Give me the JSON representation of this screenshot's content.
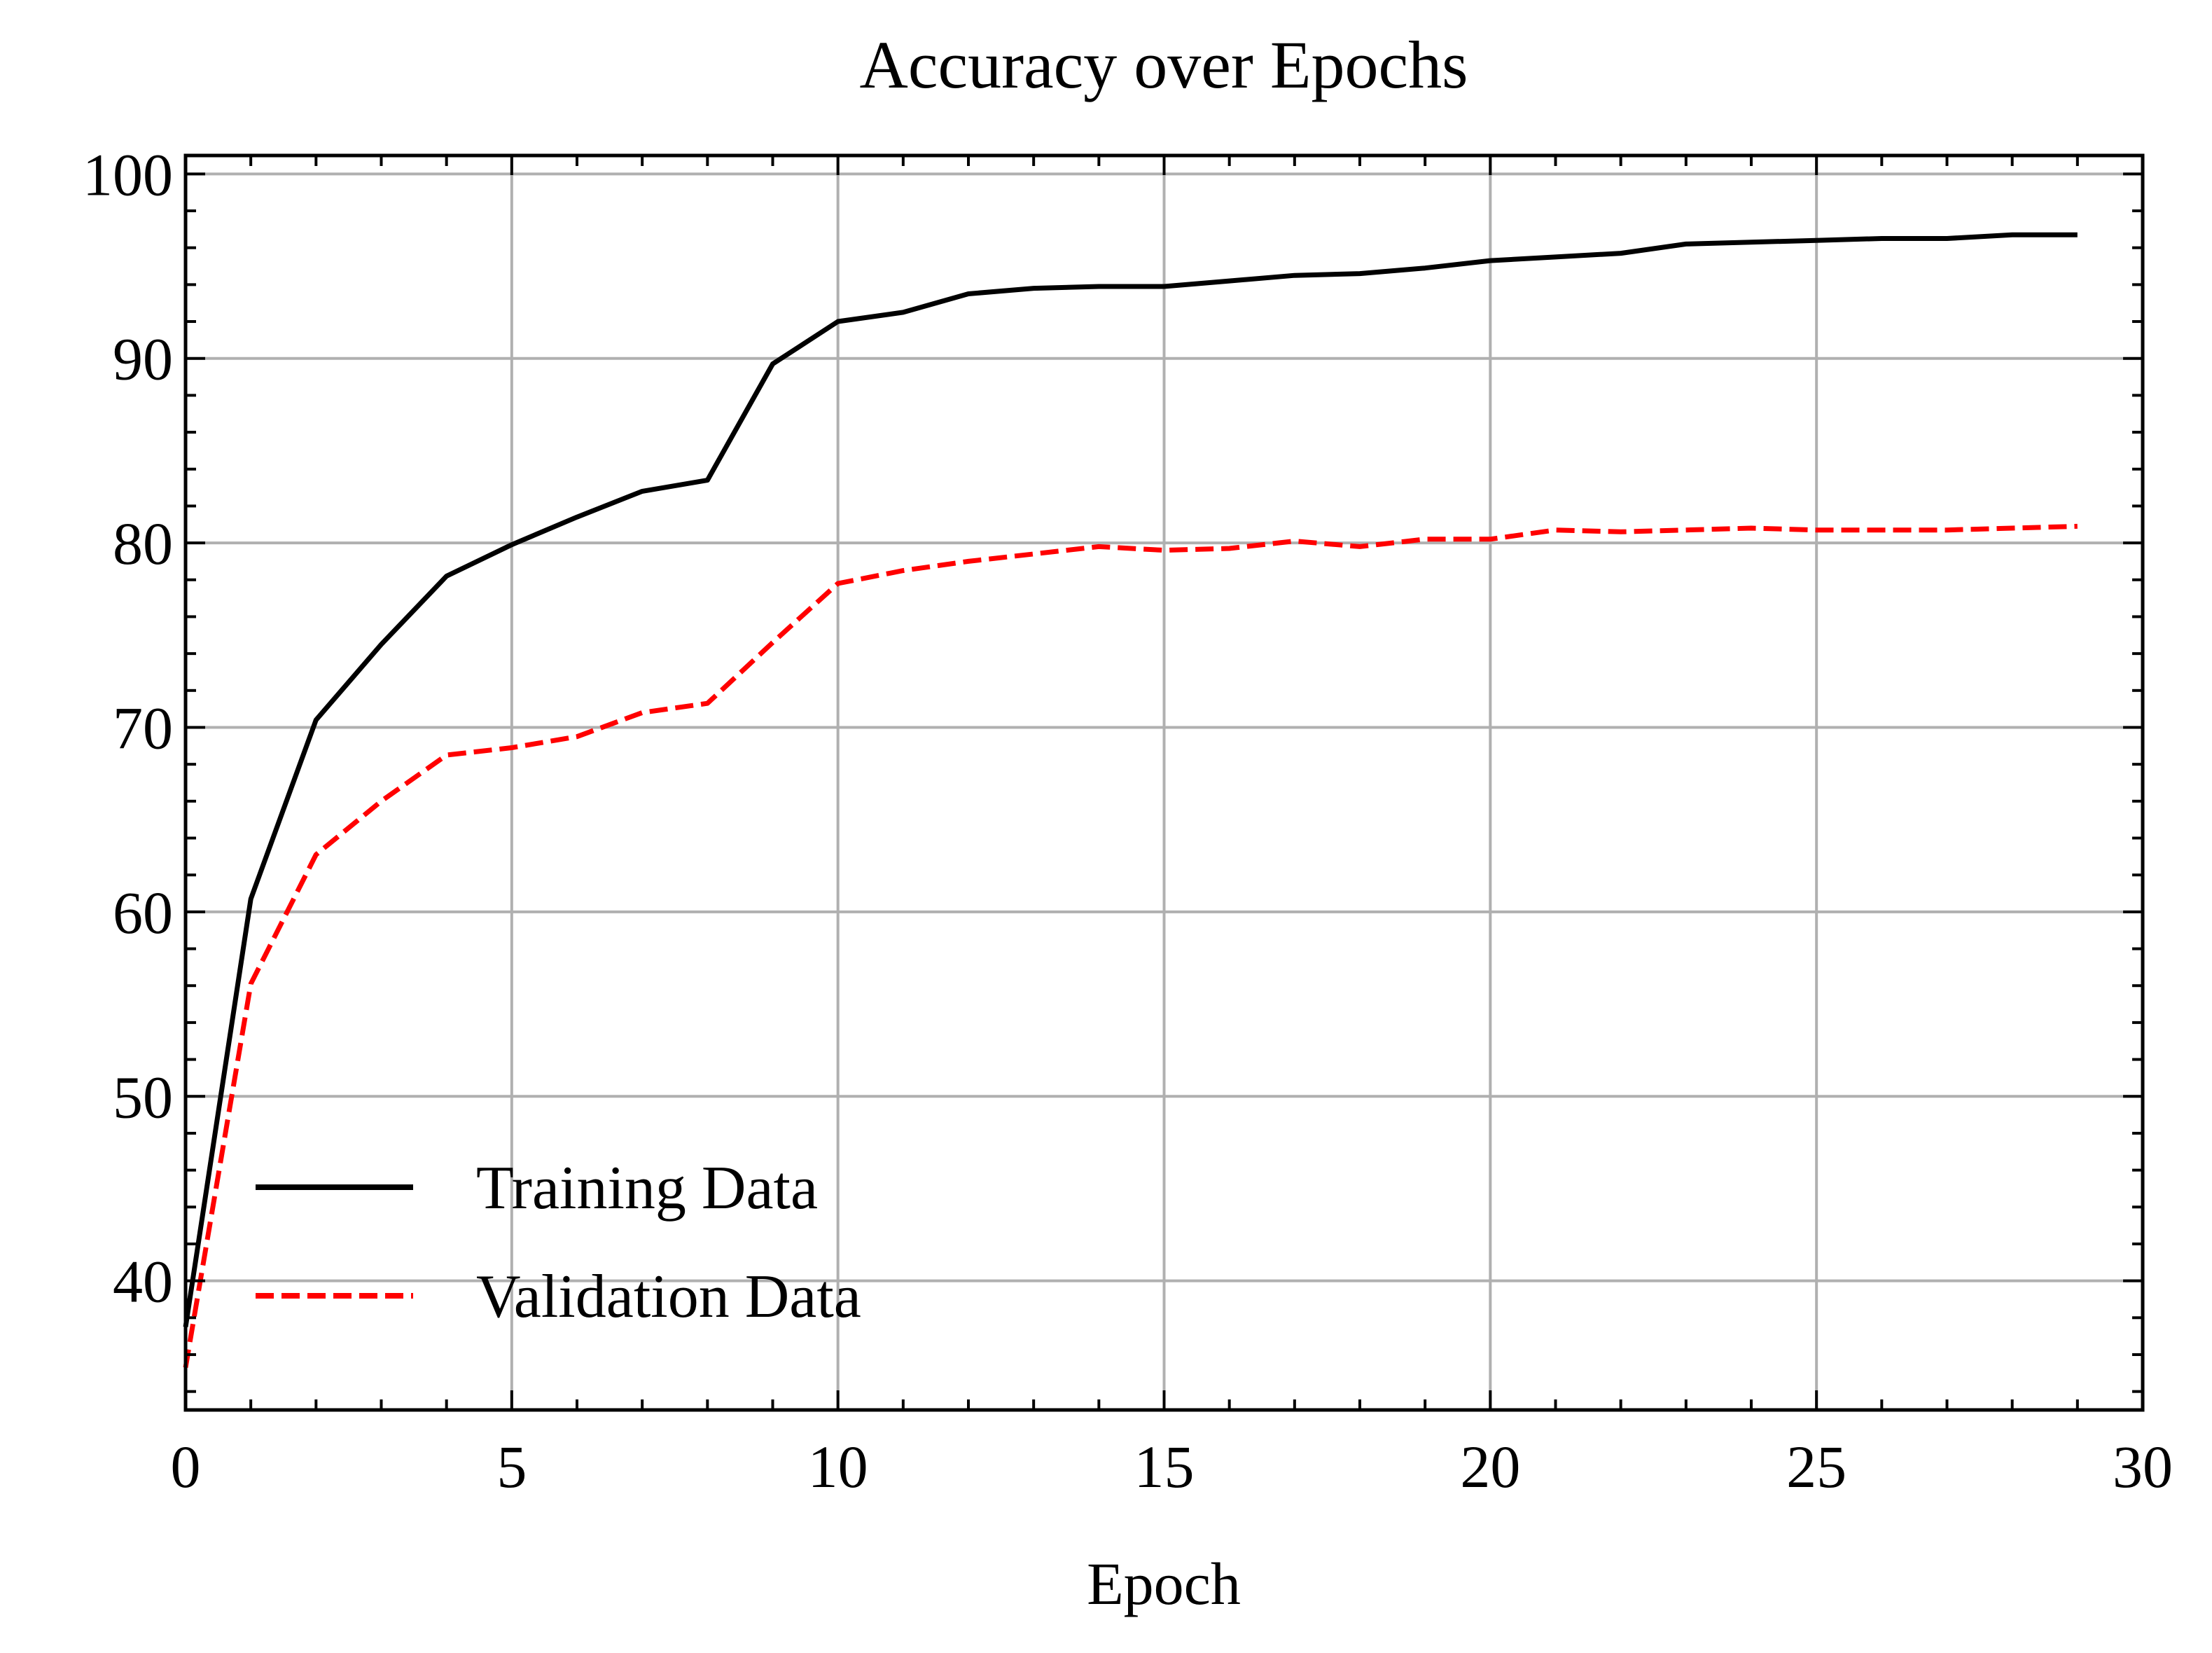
{
  "chart_data": {
    "type": "line",
    "title": "Accuracy over Epochs",
    "xlabel": "Epoch",
    "ylabel": "",
    "xlim": [
      0,
      30
    ],
    "ylim": [
      33,
      101
    ],
    "xticks": [
      0,
      5,
      10,
      15,
      20,
      25,
      30
    ],
    "yticks": [
      40,
      50,
      60,
      70,
      80,
      90,
      100
    ],
    "x_minor_step": 1,
    "y_minor_step": 2,
    "grid": true,
    "legend_position": "lower-left",
    "x": [
      0,
      1,
      2,
      3,
      4,
      5,
      6,
      7,
      8,
      9,
      10,
      11,
      12,
      13,
      14,
      15,
      16,
      17,
      18,
      19,
      20,
      21,
      22,
      23,
      24,
      25,
      26,
      27,
      28,
      29
    ],
    "series": [
      {
        "name": "Training Data",
        "color": "#000000",
        "style": "solid",
        "values": [
          37.5,
          60.7,
          70.4,
          74.5,
          78.2,
          79.9,
          81.4,
          82.8,
          83.4,
          89.7,
          92.0,
          92.5,
          93.5,
          93.8,
          93.9,
          93.9,
          94.2,
          94.5,
          94.6,
          94.9,
          95.3,
          95.5,
          95.7,
          96.2,
          96.3,
          96.4,
          96.5,
          96.5,
          96.7,
          96.7
        ]
      },
      {
        "name": "Validation Data",
        "color": "#ff0000",
        "style": "dashed",
        "values": [
          35.3,
          56.1,
          63.1,
          66.0,
          68.5,
          68.9,
          69.5,
          70.8,
          71.3,
          74.6,
          77.8,
          78.5,
          79.0,
          79.4,
          79.8,
          79.6,
          79.7,
          80.1,
          79.8,
          80.2,
          80.2,
          80.7,
          80.6,
          80.7,
          80.8,
          80.7,
          80.7,
          80.7,
          80.8,
          80.9
        ]
      }
    ]
  }
}
